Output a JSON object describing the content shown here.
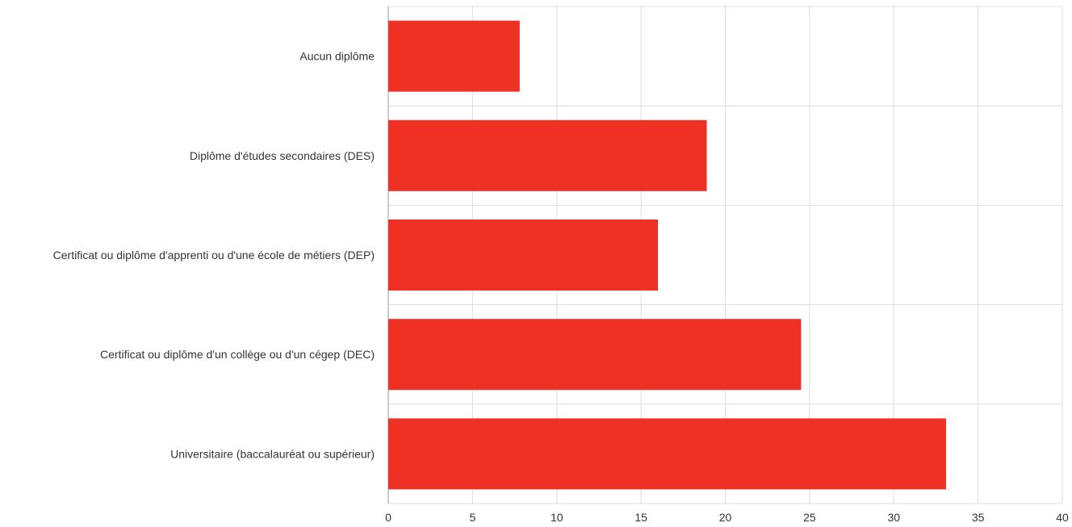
{
  "chart_data": {
    "type": "bar",
    "orientation": "horizontal",
    "categories": [
      "Aucun diplôme",
      "Diplôme d'études secondaires (DES)",
      "Certificat ou diplôme d'apprenti ou d'une école de métiers (DEP)",
      "Certificat ou diplôme d'un collège ou d'un cégep (DEC)",
      "Universitaire (baccalauréat ou supérieur)"
    ],
    "values": [
      7.8,
      18.9,
      16.0,
      24.5,
      33.1
    ],
    "xlim": [
      0,
      40
    ],
    "xticks": [
      0,
      5,
      10,
      15,
      20,
      25,
      30,
      35,
      40
    ],
    "grid": true,
    "bar_color": "#ee3124",
    "title": "",
    "xlabel": "",
    "ylabel": ""
  }
}
